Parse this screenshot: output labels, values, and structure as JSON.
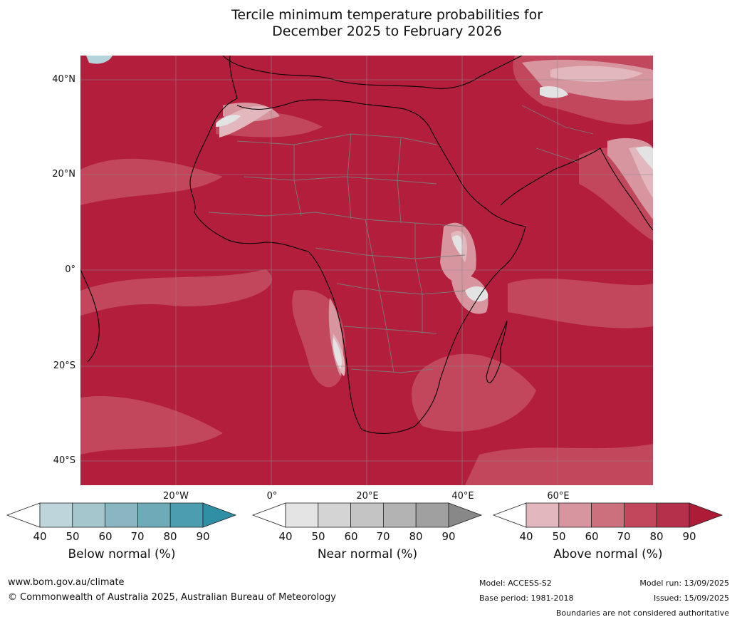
{
  "title": {
    "line1": "Tercile minimum temperature probabilities for",
    "line2": "December 2025 to February 2026"
  },
  "map": {
    "lat_labels": [
      "40°N",
      "20°N",
      "0°",
      "20°S",
      "40°S"
    ],
    "lon_labels": [
      "20°W",
      "0°",
      "20°E",
      "40°E",
      "60°E"
    ],
    "colors": {
      "ocean_base": "#b21e3c",
      "above_80": "#c2475c",
      "above_70": "#cc707d",
      "above_60": "#d6959f",
      "above_50": "#e2b8be",
      "near": "#e3e3e3",
      "below": "#b5d3db",
      "coast": "#000000",
      "border": "#7a7a7a",
      "grid": "#8a8a8a"
    }
  },
  "legends": [
    {
      "caption": "Below normal (%)",
      "ticks": [
        "40",
        "50",
        "60",
        "70",
        "80",
        "90"
      ],
      "colors": [
        "#ffffff",
        "#bfd5dc",
        "#a5c6cd",
        "#8ab6c1",
        "#6eaab8",
        "#4c9dad",
        "#2e8fa5"
      ]
    },
    {
      "caption": "Near normal (%)",
      "ticks": [
        "40",
        "50",
        "60",
        "70",
        "80",
        "90"
      ],
      "colors": [
        "#ffffff",
        "#e4e4e4",
        "#d4d4d4",
        "#c4c4c4",
        "#b3b3b3",
        "#a0a0a0",
        "#888888"
      ]
    },
    {
      "caption": "Above normal (%)",
      "ticks": [
        "40",
        "50",
        "60",
        "70",
        "80",
        "90"
      ],
      "colors": [
        "#ffffff",
        "#e2b8be",
        "#d6959f",
        "#cc707d",
        "#c2475c",
        "#b5304a",
        "#ad1b37"
      ]
    }
  ],
  "footer": {
    "website": "www.bom.gov.au/climate",
    "copyright": "© Commonwealth of Australia 2025, Australian Bureau of Meteorology",
    "model": "Model: ACCESS-S2",
    "base_period": "Base period: 1981-2018",
    "model_run": "Model run: 13/09/2025",
    "issued": "Issued: 15/09/2025",
    "disclaimer": "Boundaries are not considered authoritative"
  }
}
